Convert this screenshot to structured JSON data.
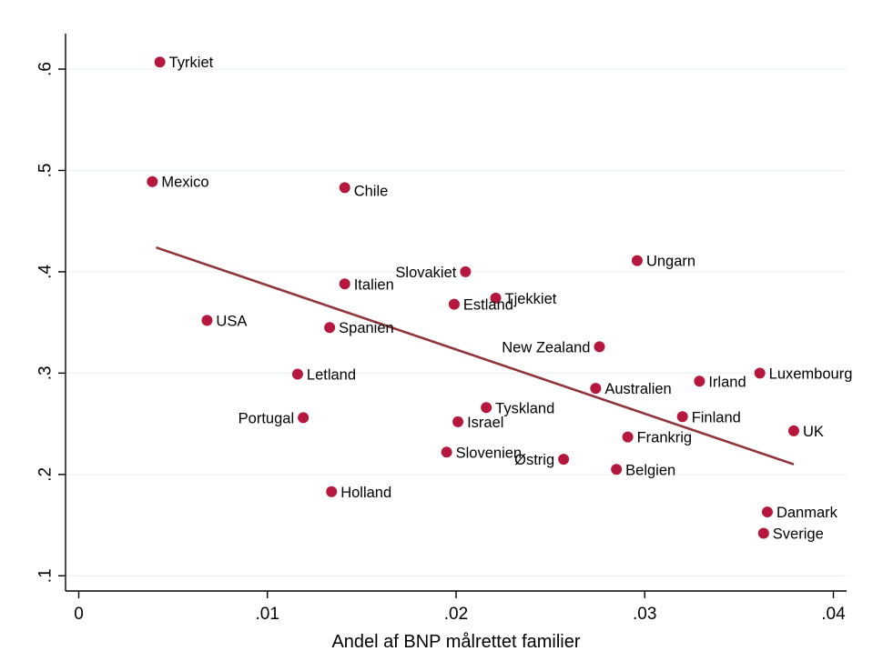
{
  "chart_data": {
    "type": "scatter",
    "xlabel": "Andel af BNP målrettet familier",
    "ylabel": "",
    "xlim": [
      -0.0007,
      0.0407
    ],
    "ylim": [
      0.085,
      0.635
    ],
    "x_ticks": [
      0,
      0.01,
      0.02,
      0.03,
      0.04
    ],
    "x_tick_labels": [
      "0",
      ".01",
      ".02",
      ".03",
      ".04"
    ],
    "y_ticks": [
      0.1,
      0.2,
      0.3,
      0.4,
      0.5,
      0.6
    ],
    "y_tick_labels": [
      ".1",
      ".2",
      ".3",
      ".4",
      ".5",
      ".6"
    ],
    "grid": true,
    "marker_color": "#b5173d",
    "fit_line_color": "#90353b",
    "points": [
      {
        "label": "Tyrkiet",
        "x": 0.0043,
        "y": 0.607,
        "label_pos": "right"
      },
      {
        "label": "Mexico",
        "x": 0.0039,
        "y": 0.489,
        "label_pos": "right"
      },
      {
        "label": "Chile",
        "x": 0.0141,
        "y": 0.483,
        "label_pos": "right-low"
      },
      {
        "label": "Ungarn",
        "x": 0.0296,
        "y": 0.411,
        "label_pos": "right"
      },
      {
        "label": "Slovakiet",
        "x": 0.0205,
        "y": 0.4,
        "label_pos": "left"
      },
      {
        "label": "Italien",
        "x": 0.0141,
        "y": 0.388,
        "label_pos": "right"
      },
      {
        "label": "Tjekkiet",
        "x": 0.0221,
        "y": 0.374,
        "label_pos": "right"
      },
      {
        "label": "Estland",
        "x": 0.0199,
        "y": 0.368,
        "label_pos": "right"
      },
      {
        "label": "USA",
        "x": 0.0068,
        "y": 0.352,
        "label_pos": "right"
      },
      {
        "label": "Spanien",
        "x": 0.0133,
        "y": 0.345,
        "label_pos": "right"
      },
      {
        "label": "New Zealand",
        "x": 0.0276,
        "y": 0.326,
        "label_pos": "left"
      },
      {
        "label": "Luxembourg",
        "x": 0.0361,
        "y": 0.3,
        "label_pos": "right"
      },
      {
        "label": "Letland",
        "x": 0.0116,
        "y": 0.299,
        "label_pos": "right"
      },
      {
        "label": "Irland",
        "x": 0.0329,
        "y": 0.292,
        "label_pos": "right"
      },
      {
        "label": "Australien",
        "x": 0.0274,
        "y": 0.285,
        "label_pos": "right"
      },
      {
        "label": "Tyskland",
        "x": 0.0216,
        "y": 0.266,
        "label_pos": "right"
      },
      {
        "label": "Finland",
        "x": 0.032,
        "y": 0.257,
        "label_pos": "right"
      },
      {
        "label": "Portugal",
        "x": 0.0119,
        "y": 0.256,
        "label_pos": "left"
      },
      {
        "label": "Israel",
        "x": 0.0201,
        "y": 0.252,
        "label_pos": "right"
      },
      {
        "label": "UK",
        "x": 0.0379,
        "y": 0.243,
        "label_pos": "right"
      },
      {
        "label": "Frankrig",
        "x": 0.0291,
        "y": 0.237,
        "label_pos": "right"
      },
      {
        "label": "Slovenien",
        "x": 0.0195,
        "y": 0.222,
        "label_pos": "right"
      },
      {
        "label": "Østrig",
        "x": 0.0257,
        "y": 0.215,
        "label_pos": "left"
      },
      {
        "label": "Belgien",
        "x": 0.0285,
        "y": 0.205,
        "label_pos": "right"
      },
      {
        "label": "Holland",
        "x": 0.0134,
        "y": 0.183,
        "label_pos": "right"
      },
      {
        "label": "Danmark",
        "x": 0.0365,
        "y": 0.163,
        "label_pos": "right"
      },
      {
        "label": "Sverige",
        "x": 0.0363,
        "y": 0.142,
        "label_pos": "right"
      }
    ],
    "fit_line": {
      "x": [
        0.0041,
        0.0379
      ],
      "y": [
        0.424,
        0.21
      ]
    }
  }
}
